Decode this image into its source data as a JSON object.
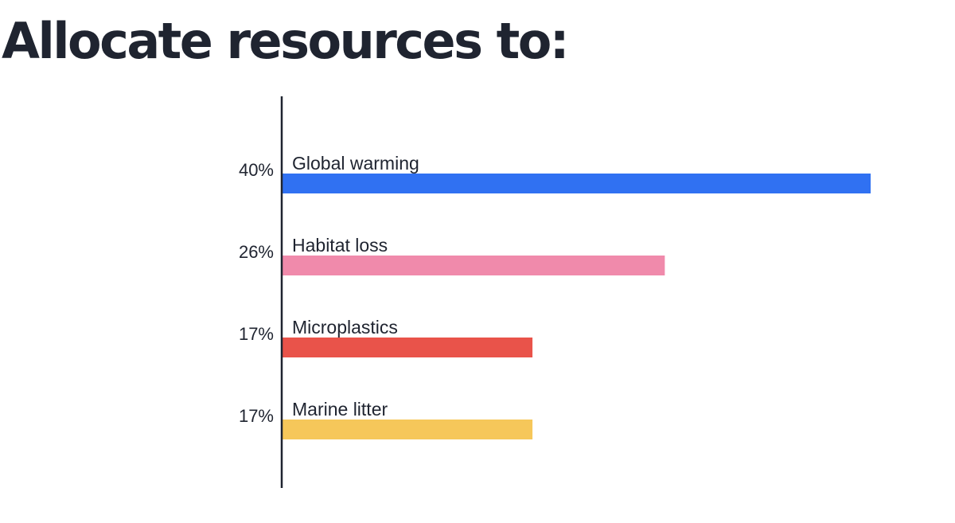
{
  "header": {
    "title": "Allocate resources to:"
  },
  "chart_data": {
    "type": "bar",
    "orientation": "horizontal",
    "categories": [
      "Global warming",
      "Habitat loss",
      "Microplastics",
      "Marine litter"
    ],
    "values": [
      40,
      26,
      17,
      17
    ],
    "value_labels": [
      "40%",
      "26%",
      "17%",
      "17%"
    ],
    "unit": "%",
    "colors": [
      "#3071f2",
      "#f08aab",
      "#e9534a",
      "#f6c75a"
    ],
    "xlim": [
      0,
      40
    ],
    "grid": false,
    "legend": "none"
  }
}
